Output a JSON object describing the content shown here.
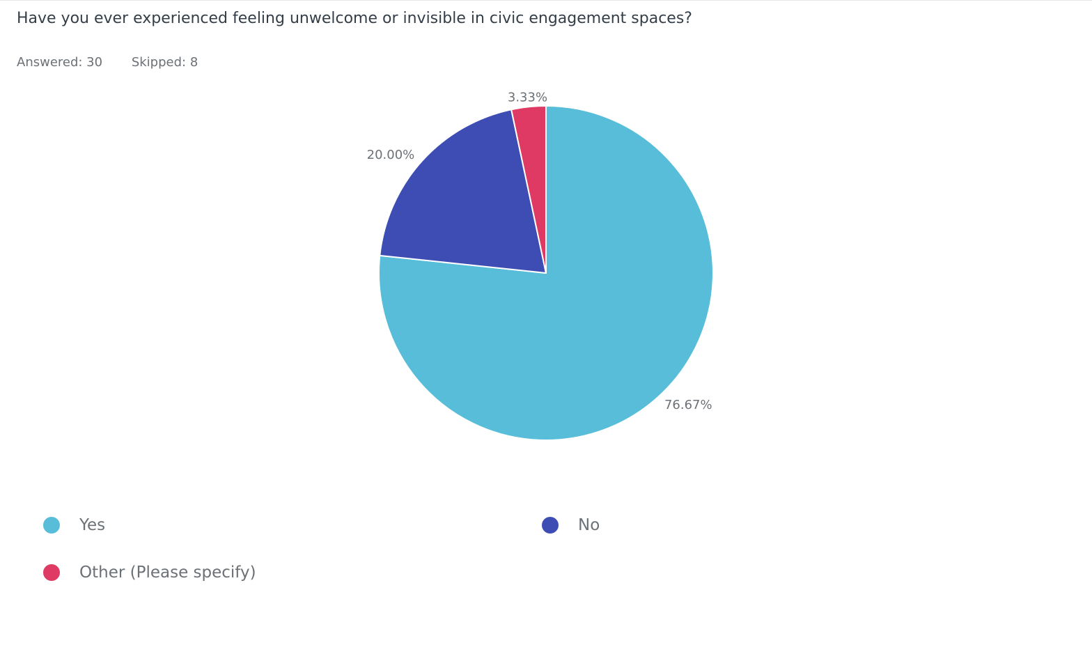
{
  "question": {
    "title": "Have you ever experienced feeling unwelcome or invisible in civic engagement spaces?",
    "answered_label": "Answered: 30",
    "skipped_label": "Skipped: 8"
  },
  "colors": {
    "yes": "#57bdd8",
    "no": "#3d4db3",
    "other": "#de3a64"
  },
  "chart_data": {
    "type": "pie",
    "title": "Have you ever experienced feeling unwelcome or invisible in civic engagement spaces?",
    "categories": [
      "Yes",
      "No",
      "Other (Please specify)"
    ],
    "values": [
      76.67,
      20.0,
      3.33
    ],
    "value_labels": [
      "76.67%",
      "20.00%",
      "3.33%"
    ],
    "colors": [
      "#57bdd8",
      "#3d4db3",
      "#de3a64"
    ],
    "legend_position": "bottom",
    "start_angle": "top",
    "direction": "clockwise"
  },
  "legend": {
    "items": [
      {
        "label": "Yes",
        "color": "#57bdd8"
      },
      {
        "label": "No",
        "color": "#3d4db3"
      },
      {
        "label": "Other (Please specify)",
        "color": "#de3a64"
      }
    ]
  }
}
